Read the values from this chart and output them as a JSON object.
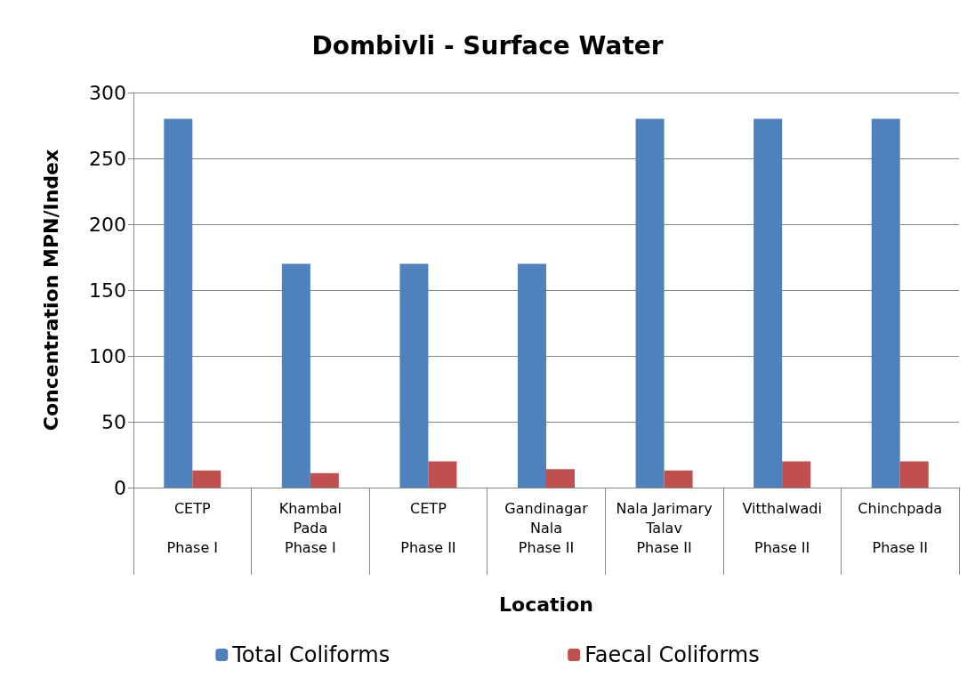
{
  "chart_data": {
    "type": "bar",
    "title": "Dombivli - Surface Water",
    "xlabel": "Location",
    "ylabel": "Concentration MPN/Index",
    "categories": [
      "CETP\n\nPhase I",
      "Khambal\nPada\nPhase I",
      "CETP\n\nPhase II",
      "Gandinagar\nNala\nPhase II",
      "Nala Jarimary\nTalav\nPhase II",
      "Vitthalwadi\n\nPhase II",
      "Chinchpada\n\nPhase II"
    ],
    "series": [
      {
        "name": "Total Coliforms",
        "color": "#4f81bd",
        "values": [
          280,
          170,
          170,
          170,
          280,
          280,
          280
        ]
      },
      {
        "name": "Faecal Coliforms",
        "color": "#c0504d",
        "values": [
          13,
          11,
          20,
          14,
          13,
          20,
          20
        ]
      }
    ],
    "ylim": [
      0,
      300
    ],
    "yticks": [
      0,
      50,
      100,
      150,
      200,
      250,
      300
    ],
    "grid": "y",
    "legend": "bottom"
  }
}
